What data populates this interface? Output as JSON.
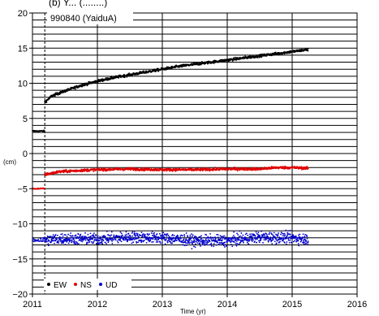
{
  "chart_data": {
    "type": "scatter",
    "title": "(b) Y... (........)",
    "station_label": "990840 (YaiduA)",
    "xlabel": "Time (yr)",
    "ylabel": "(cm)",
    "xlim": [
      2011,
      2016
    ],
    "ylim": [
      -20,
      20
    ],
    "x_ticks": [
      "2011",
      "2012",
      "2013",
      "2014",
      "2015",
      "2016"
    ],
    "y_ticks": [
      "20",
      "15",
      "10",
      "5",
      "0",
      "−5",
      "−10",
      "−15",
      "−20"
    ],
    "grid": true,
    "event_line_x": 2011.19,
    "legend_position": "bottom-left",
    "colors": {
      "EW": "#000000",
      "NS": "#e00000",
      "UD": "#0000cc"
    },
    "series": [
      {
        "name": "EW",
        "pre": {
          "x": [
            2011.0,
            2011.19
          ],
          "y": [
            3.2,
            3.2
          ]
        },
        "post": {
          "x": [
            2011.19,
            2011.3,
            2011.5,
            2011.75,
            2012.0,
            2012.25,
            2012.5,
            2012.75,
            2013.0,
            2013.25,
            2013.5,
            2013.75,
            2014.0,
            2014.25,
            2014.5,
            2014.75,
            2015.0,
            2015.25
          ],
          "y": [
            7.3,
            8.2,
            8.9,
            9.7,
            10.3,
            10.8,
            11.2,
            11.6,
            12.0,
            12.4,
            12.7,
            13.0,
            13.3,
            13.6,
            13.9,
            14.2,
            14.5,
            14.8
          ]
        }
      },
      {
        "name": "NS",
        "pre": {
          "x": [
            2011.0,
            2011.19
          ],
          "y": [
            -5.0,
            -5.0
          ]
        },
        "post": {
          "x": [
            2011.19,
            2011.4,
            2011.75,
            2012.0,
            2012.5,
            2013.0,
            2013.5,
            2014.0,
            2014.5,
            2014.75,
            2015.0,
            2015.25
          ],
          "y": [
            -3.0,
            -2.6,
            -2.4,
            -2.3,
            -2.2,
            -2.3,
            -2.3,
            -2.2,
            -2.2,
            -2.0,
            -2.0,
            -2.1
          ]
        }
      },
      {
        "name": "UD",
        "pre": {
          "x": [
            2011.0,
            2011.19
          ],
          "y": [
            -12.3,
            -12.3
          ]
        },
        "post": {
          "x": [
            2011.19,
            2011.5,
            2012.0,
            2012.5,
            2013.0,
            2013.5,
            2014.0,
            2014.5,
            2015.0,
            2015.25
          ],
          "y": [
            -12.3,
            -12.1,
            -12.2,
            -11.9,
            -12.0,
            -12.4,
            -12.4,
            -11.9,
            -12.0,
            -12.2
          ]
        }
      }
    ]
  }
}
